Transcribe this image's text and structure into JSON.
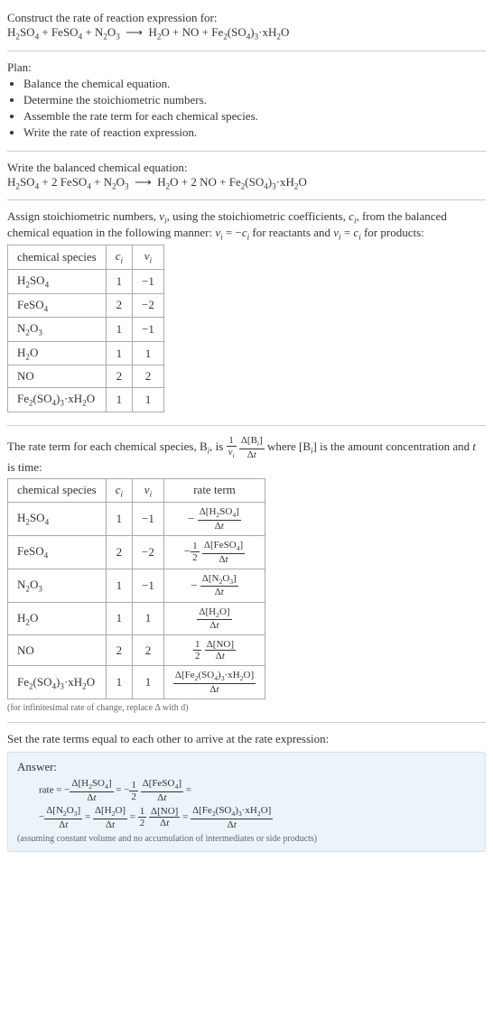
{
  "header": {
    "prompt": "Construct the rate of reaction expression for:",
    "unbalanced_eq_html": "H<sub>2</sub>SO<sub>4</sub> + FeSO<sub>4</sub> + N<sub>2</sub>O<sub>3</sub> &nbsp;⟶&nbsp; H<sub>2</sub>O + NO + Fe<sub>2</sub>(SO<sub>4</sub>)<sub>3</sub>·xH<sub>2</sub>O"
  },
  "plan": {
    "title": "Plan:",
    "items": [
      "Balance the chemical equation.",
      "Determine the stoichiometric numbers.",
      "Assemble the rate term for each chemical species.",
      "Write the rate of reaction expression."
    ]
  },
  "balanced": {
    "title": "Write the balanced chemical equation:",
    "eq_html": "H<sub>2</sub>SO<sub>4</sub> + 2 FeSO<sub>4</sub> + N<sub>2</sub>O<sub>3</sub> &nbsp;⟶&nbsp; H<sub>2</sub>O + 2 NO + Fe<sub>2</sub>(SO<sub>4</sub>)<sub>3</sub>·xH<sub>2</sub>O"
  },
  "stoich": {
    "intro_html": "Assign stoichiometric numbers, <i>ν<sub>i</sub></i>, using the stoichiometric coefficients, <i>c<sub>i</sub></i>, from the balanced chemical equation in the following manner: <i>ν<sub>i</sub></i> = −<i>c<sub>i</sub></i> for reactants and <i>ν<sub>i</sub></i> = <i>c<sub>i</sub></i> for products:",
    "columns": [
      "chemical species",
      "cᵢ",
      "νᵢ"
    ],
    "col_html": [
      "chemical species",
      "<i>c<sub>i</sub></i>",
      "<i>ν<sub>i</sub></i>"
    ],
    "rows": [
      {
        "species_html": "H<sub>2</sub>SO<sub>4</sub>",
        "c": 1,
        "nu": -1
      },
      {
        "species_html": "FeSO<sub>4</sub>",
        "c": 2,
        "nu": -2
      },
      {
        "species_html": "N<sub>2</sub>O<sub>3</sub>",
        "c": 1,
        "nu": -1
      },
      {
        "species_html": "H<sub>2</sub>O",
        "c": 1,
        "nu": 1
      },
      {
        "species_html": "NO",
        "c": 2,
        "nu": 2
      },
      {
        "species_html": "Fe<sub>2</sub>(SO<sub>4</sub>)<sub>3</sub>·xH<sub>2</sub>O",
        "c": 1,
        "nu": 1
      }
    ]
  },
  "rateterm": {
    "intro_pre": "The rate term for each chemical species, B",
    "intro_post": ", is ",
    "intro_tail": " where [B<sub><i>i</i></sub>] is the amount concentration and <i>t</i> is time:",
    "columns_html": [
      "chemical species",
      "<i>c<sub>i</sub></i>",
      "<i>ν<sub>i</sub></i>",
      "rate term"
    ],
    "rows": [
      {
        "species_html": "H<sub>2</sub>SO<sub>4</sub>",
        "c": 1,
        "nu": -1,
        "coef_html": "−",
        "num_html": "Δ[H<sub>2</sub>SO<sub>4</sub>]",
        "den_html": "Δ<i>t</i>"
      },
      {
        "species_html": "FeSO<sub>4</sub>",
        "c": 2,
        "nu": -2,
        "coef_html": "−<span class='frac'><span class='num'>1</span><span class='den'>2</span></span>",
        "num_html": "Δ[FeSO<sub>4</sub>]",
        "den_html": "Δ<i>t</i>"
      },
      {
        "species_html": "N<sub>2</sub>O<sub>3</sub>",
        "c": 1,
        "nu": -1,
        "coef_html": "−",
        "num_html": "Δ[N<sub>2</sub>O<sub>3</sub>]",
        "den_html": "Δ<i>t</i>"
      },
      {
        "species_html": "H<sub>2</sub>O",
        "c": 1,
        "nu": 1,
        "coef_html": "",
        "num_html": "Δ[H<sub>2</sub>O]",
        "den_html": "Δ<i>t</i>"
      },
      {
        "species_html": "NO",
        "c": 2,
        "nu": 2,
        "coef_html": "<span class='frac'><span class='num'>1</span><span class='den'>2</span></span>",
        "num_html": "Δ[NO]",
        "den_html": "Δ<i>t</i>"
      },
      {
        "species_html": "Fe<sub>2</sub>(SO<sub>4</sub>)<sub>3</sub>·xH<sub>2</sub>O",
        "c": 1,
        "nu": 1,
        "coef_html": "",
        "num_html": "Δ[Fe<sub>2</sub>(SO<sub>4</sub>)<sub>3</sub>·xH<sub>2</sub>O]",
        "den_html": "Δ<i>t</i>"
      }
    ],
    "note": "(for infinitesimal rate of change, replace Δ with d)"
  },
  "final": {
    "lead": "Set the rate terms equal to each other to arrive at the rate expression:",
    "answer_label": "Answer:",
    "line1_html": "rate = −<span class='frac'><span class='num'>Δ[H<sub>2</sub>SO<sub>4</sub>]</span><span class='den'>Δ<i>t</i></span></span> = −<span class='frac'><span class='num'>1</span><span class='den'>2</span></span> <span class='frac'><span class='num'>Δ[FeSO<sub>4</sub>]</span><span class='den'>Δ<i>t</i></span></span> =",
    "line2_html": "−<span class='frac'><span class='num'>Δ[N<sub>2</sub>O<sub>3</sub>]</span><span class='den'>Δ<i>t</i></span></span> = <span class='frac'><span class='num'>Δ[H<sub>2</sub>O]</span><span class='den'>Δ<i>t</i></span></span> = <span class='frac'><span class='num'>1</span><span class='den'>2</span></span> <span class='frac'><span class='num'>Δ[NO]</span><span class='den'>Δ<i>t</i></span></span> = <span class='frac'><span class='num'>Δ[Fe<sub>2</sub>(SO<sub>4</sub>)<sub>3</sub>·xH<sub>2</sub>O]</span><span class='den'>Δ<i>t</i></span></span>",
    "assumption": "(assuming constant volume and no accumulation of intermediates or side products)"
  }
}
